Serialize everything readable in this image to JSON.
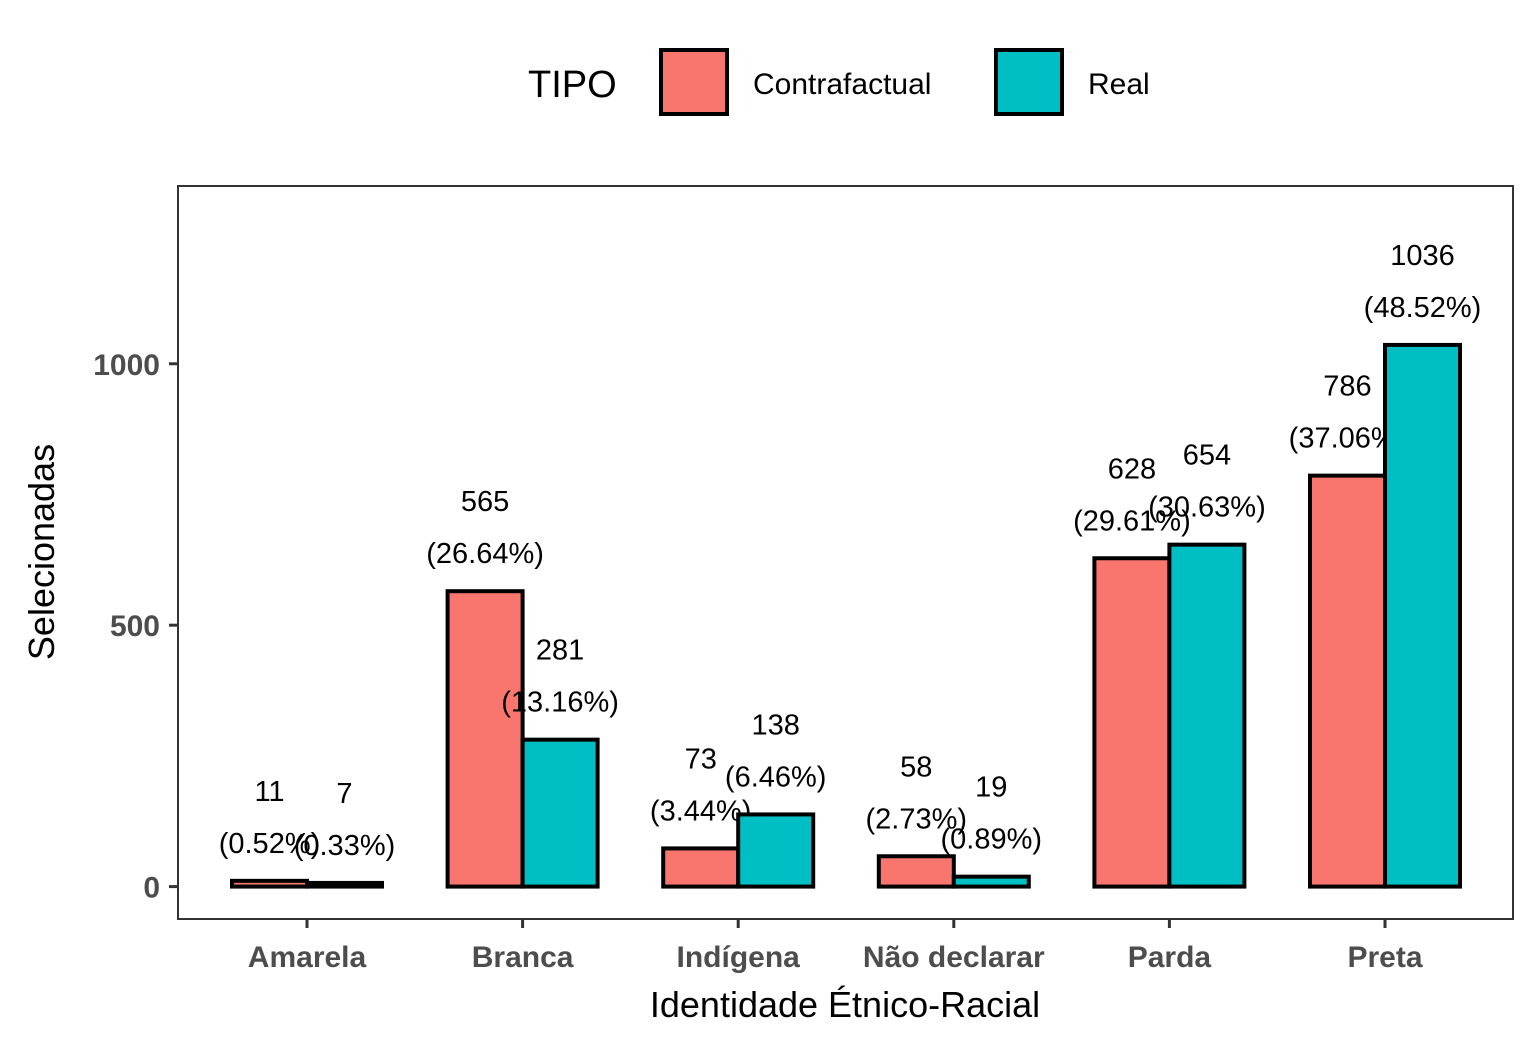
{
  "chart_data": {
    "type": "bar",
    "xlabel": "Identidade Étnico-Racial",
    "ylabel": "Selecionadas",
    "ylim": [
      -62,
      1340
    ],
    "yticks": [
      0,
      500,
      1000
    ],
    "grid": false,
    "legend": {
      "title": "TIPO",
      "position": "top"
    },
    "categories": [
      "Amarela",
      "Branca",
      "Indígena",
      "Não declarar",
      "Parda",
      "Preta"
    ],
    "series": [
      {
        "name": "Contrafactual",
        "color": "#F8766D",
        "values": [
          11,
          565,
          73,
          58,
          628,
          786
        ],
        "labels": [
          "(0.52%)",
          "(26.64%)",
          "(3.44%)",
          "(2.73%)",
          "(29.61%)",
          "(37.06%)"
        ]
      },
      {
        "name": "Real",
        "color": "#00BFC4",
        "values": [
          7,
          281,
          138,
          19,
          654,
          1036
        ],
        "labels": [
          "(0.33%)",
          "(13.16%)",
          "(6.46%)",
          "(0.89%)",
          "(30.63%)",
          "(48.52%)"
        ]
      }
    ]
  }
}
